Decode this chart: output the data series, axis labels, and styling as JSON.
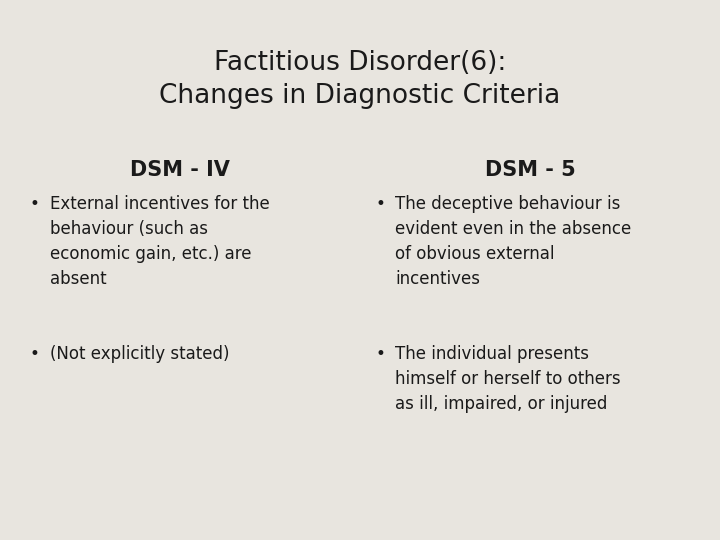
{
  "title_line1": "Factitious Disorder(6):",
  "title_line2": "Changes in Diagnostic Criteria",
  "col1_header": "DSM - IV",
  "col2_header": "DSM - 5",
  "col1_bullets": [
    "External incentives for the\nbehaviour (such as\neconomic gain, etc.) are\nabsent",
    "(Not explicitly stated)"
  ],
  "col2_bullets": [
    "The deceptive behaviour is\nevident even in the absence\nof obvious external\nincentives",
    "The individual presents\nhimself or herself to others\nas ill, impaired, or injured"
  ],
  "bg_color": "#e8e5df",
  "text_color": "#1a1a1a",
  "title_fontsize": 19,
  "header_fontsize": 15,
  "body_fontsize": 12,
  "bullet_char": "•"
}
